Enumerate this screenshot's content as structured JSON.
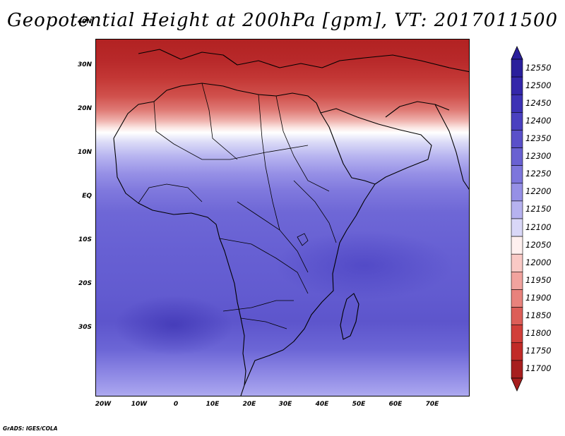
{
  "title": "Geopotential Height at 200hPa [gpm], VT: 2017011500",
  "footer": "GrADS: IGES/COLA",
  "map": {
    "latitude_labels": [
      "40N",
      "30N",
      "20N",
      "10N",
      "EQ",
      "10S",
      "20S",
      "30S"
    ],
    "longitude_labels": [
      "20W",
      "10W",
      "0",
      "10E",
      "20E",
      "30E",
      "40E",
      "50E",
      "60E",
      "70E"
    ],
    "field_colors": {
      "high": "#b22222",
      "mid_low": "#ffffff",
      "low": "#5d55cc"
    }
  },
  "colorbar": {
    "values": [
      "12550",
      "12500",
      "12450",
      "12400",
      "12350",
      "12300",
      "12250",
      "12200",
      "12150",
      "12100",
      "12050",
      "12000",
      "11950",
      "11900",
      "11850",
      "11800",
      "11750",
      "11700"
    ],
    "colors": [
      "#2a1f9c",
      "#3427aa",
      "#3d32b5",
      "#4a40c0",
      "#5a50c9",
      "#6961d2",
      "#7d76dc",
      "#9690e6",
      "#b6b2ef",
      "#d9d7f7",
      "#fff0ef",
      "#f9c9c5",
      "#f1a39e",
      "#e8827c",
      "#dc5e58",
      "#d13f3a",
      "#c12b28",
      "#a71e1e"
    ]
  }
}
